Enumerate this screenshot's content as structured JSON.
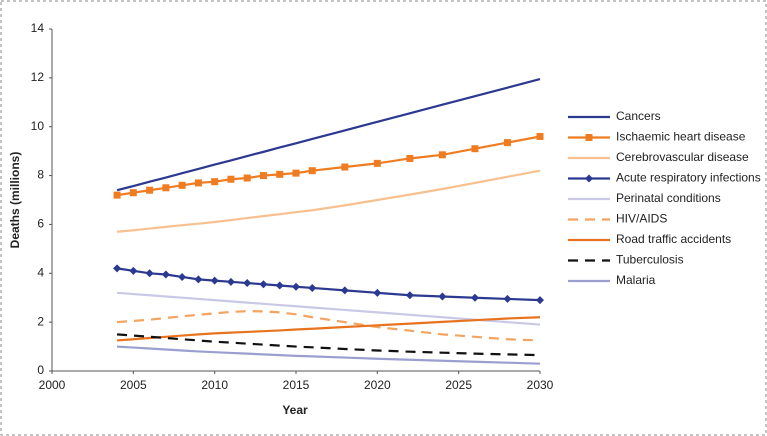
{
  "chart_data": {
    "type": "line",
    "x_label": "Year",
    "y_label": "Deaths (millions)",
    "x": [
      2004,
      2005,
      2006,
      2007,
      2008,
      2009,
      2010,
      2011,
      2012,
      2013,
      2014,
      2015,
      2016,
      2018,
      2020,
      2022,
      2024,
      2026,
      2028,
      2030
    ],
    "xlim": [
      2000,
      2030
    ],
    "xticks": [
      2000,
      2005,
      2010,
      2015,
      2020,
      2025,
      2030
    ],
    "ylim": [
      0,
      14
    ],
    "yticks": [
      0,
      2,
      4,
      6,
      8,
      10,
      12,
      14
    ],
    "grid": false,
    "series": [
      {
        "name": "Cancers",
        "color": "#2b3990",
        "values": [
          7.4,
          7.57,
          7.75,
          7.92,
          8.1,
          8.27,
          8.45,
          8.62,
          8.8,
          8.97,
          9.15,
          9.32,
          9.5,
          9.85,
          10.2,
          10.55,
          10.9,
          11.25,
          11.6,
          11.95
        ]
      },
      {
        "name": "Ischaemic heart disease",
        "color": "#f07c22",
        "marker": "square",
        "values": [
          7.2,
          7.3,
          7.4,
          7.5,
          7.6,
          7.7,
          7.75,
          7.85,
          7.9,
          8.0,
          8.05,
          8.1,
          8.2,
          8.35,
          8.5,
          8.7,
          8.85,
          9.1,
          9.35,
          9.6
        ]
      },
      {
        "name": "Cerebrovascular disease",
        "color": "#f9c08f",
        "values": [
          5.7,
          5.76,
          5.83,
          5.9,
          5.97,
          6.03,
          6.1,
          6.18,
          6.26,
          6.34,
          6.42,
          6.5,
          6.58,
          6.78,
          7.0,
          7.22,
          7.45,
          7.7,
          7.95,
          8.2
        ]
      },
      {
        "name": "Acute respiratory infections",
        "color": "#2b3990",
        "marker": "diamond",
        "values": [
          4.2,
          4.1,
          4.0,
          3.95,
          3.85,
          3.75,
          3.7,
          3.65,
          3.6,
          3.55,
          3.5,
          3.45,
          3.4,
          3.3,
          3.2,
          3.1,
          3.05,
          3.0,
          2.95,
          2.9
        ]
      },
      {
        "name": "Perinatal conditions",
        "color": "#c9c9e6",
        "values": [
          3.2,
          3.15,
          3.1,
          3.05,
          3.0,
          2.95,
          2.9,
          2.85,
          2.8,
          2.75,
          2.7,
          2.65,
          2.6,
          2.5,
          2.4,
          2.3,
          2.2,
          2.1,
          2.0,
          1.9
        ]
      },
      {
        "name": "HIV/AIDS",
        "color": "#f4a460",
        "dash": true,
        "values": [
          2.0,
          2.05,
          2.1,
          2.17,
          2.24,
          2.3,
          2.36,
          2.42,
          2.45,
          2.44,
          2.4,
          2.32,
          2.2,
          2.0,
          1.8,
          1.65,
          1.5,
          1.4,
          1.3,
          1.25
        ]
      },
      {
        "name": "Road traffic accidents",
        "color": "#e8731f",
        "values": [
          1.25,
          1.3,
          1.35,
          1.4,
          1.45,
          1.5,
          1.54,
          1.57,
          1.6,
          1.63,
          1.66,
          1.7,
          1.73,
          1.8,
          1.87,
          1.94,
          2.01,
          2.08,
          2.15,
          2.2
        ]
      },
      {
        "name": "Tuberculosis",
        "color": "#111111",
        "dash": true,
        "values": [
          1.5,
          1.45,
          1.4,
          1.35,
          1.3,
          1.25,
          1.2,
          1.16,
          1.12,
          1.08,
          1.04,
          1.0,
          0.97,
          0.9,
          0.84,
          0.79,
          0.75,
          0.71,
          0.68,
          0.65
        ]
      },
      {
        "name": "Malaria",
        "color": "#9a9fd0",
        "values": [
          1.0,
          0.96,
          0.92,
          0.88,
          0.84,
          0.8,
          0.77,
          0.74,
          0.71,
          0.68,
          0.65,
          0.62,
          0.6,
          0.55,
          0.5,
          0.46,
          0.42,
          0.38,
          0.34,
          0.3
        ]
      }
    ]
  }
}
